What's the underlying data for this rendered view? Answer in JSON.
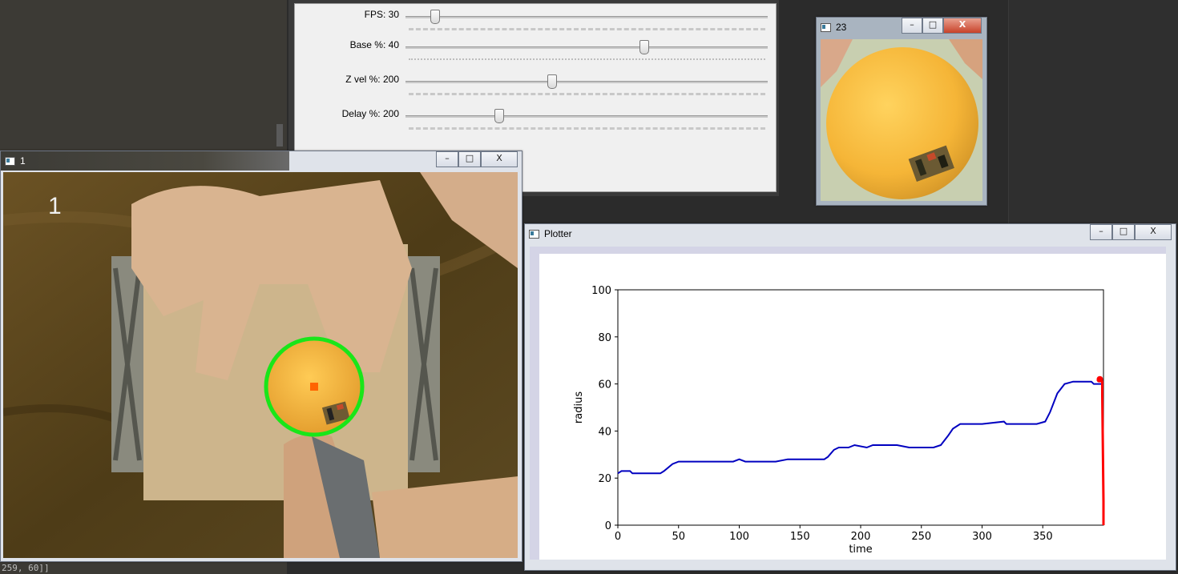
{
  "status_text": "259, 60]]",
  "trackbars": [
    {
      "label": "FPS: 30",
      "pos": 0.07
    },
    {
      "label": "Base %: 40",
      "pos": 0.66
    },
    {
      "label": "Z vel %: 200",
      "pos": 0.4
    },
    {
      "label": "Delay %: 200",
      "pos": 0.25
    }
  ],
  "camera_window": {
    "title": "1",
    "overlay_text": "1"
  },
  "crop_window": {
    "title": "23"
  },
  "plotter_window": {
    "title": "Plotter"
  },
  "window_controls": {
    "minimize": "–",
    "maximize": "□",
    "close": "X"
  },
  "colors": {
    "series": "#0000c0",
    "current": "#ff0000",
    "detection": "#19e619",
    "center": "#ff6400"
  },
  "chart_data": {
    "type": "line",
    "xlabel": "time",
    "ylabel": "radius",
    "xlim": [
      0,
      400
    ],
    "ylim": [
      0,
      100
    ],
    "xticks": [
      0,
      50,
      100,
      150,
      200,
      250,
      300,
      350
    ],
    "yticks": [
      0,
      20,
      40,
      60,
      80,
      100
    ],
    "series": [
      {
        "points": [
          [
            0,
            22
          ],
          [
            3,
            23
          ],
          [
            10,
            23
          ],
          [
            12,
            22
          ],
          [
            35,
            22
          ],
          [
            38,
            23
          ],
          [
            45,
            26
          ],
          [
            50,
            27
          ],
          [
            60,
            27
          ],
          [
            65,
            27
          ],
          [
            95,
            27
          ],
          [
            100,
            28
          ],
          [
            105,
            27
          ],
          [
            130,
            27
          ],
          [
            140,
            28
          ],
          [
            160,
            28
          ],
          [
            170,
            28
          ],
          [
            173,
            29
          ],
          [
            178,
            32
          ],
          [
            182,
            33
          ],
          [
            190,
            33
          ],
          [
            195,
            34
          ],
          [
            205,
            33
          ],
          [
            210,
            34
          ],
          [
            230,
            34
          ],
          [
            240,
            33
          ],
          [
            260,
            33
          ],
          [
            266,
            34
          ],
          [
            272,
            38
          ],
          [
            276,
            41
          ],
          [
            282,
            43
          ],
          [
            290,
            43
          ],
          [
            300,
            43
          ],
          [
            318,
            44
          ],
          [
            320,
            43
          ],
          [
            345,
            43
          ],
          [
            352,
            44
          ],
          [
            356,
            48
          ],
          [
            362,
            56
          ],
          [
            368,
            60
          ],
          [
            375,
            61
          ],
          [
            385,
            61
          ],
          [
            390,
            61
          ],
          [
            392,
            60
          ],
          [
            395,
            60
          ],
          [
            398,
            60
          ]
        ]
      }
    ],
    "current": {
      "points": [
        [
          395,
          61
        ],
        [
          397,
          62
        ],
        [
          399,
          61
        ],
        [
          399,
          55
        ],
        [
          400,
          10
        ],
        [
          400,
          0
        ]
      ]
    }
  }
}
